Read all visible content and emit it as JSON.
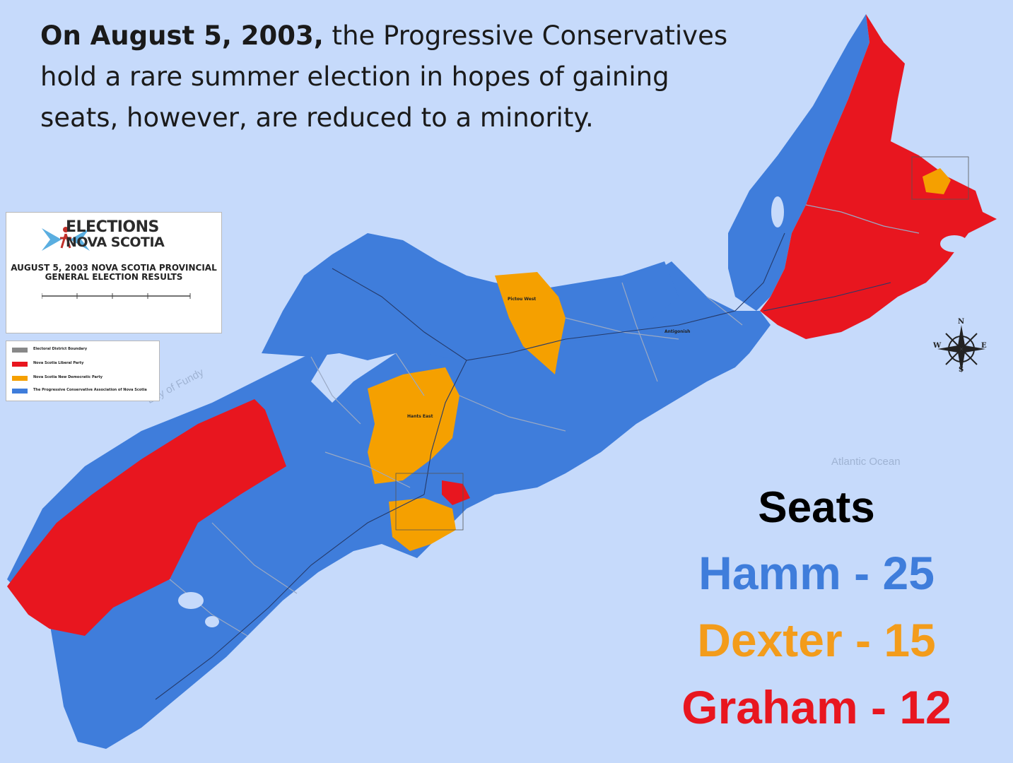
{
  "caption": {
    "bold": "On August 5, 2003,",
    "rest": " the Progressive Conservatives hold a rare summer election in hopes of gaining seats, however, are reduced to a minority."
  },
  "map_legend": {
    "logo_line1": "ELECTIONS",
    "logo_line2": "NOVA SCOTIA",
    "title_line1": "AUGUST 5, 2003 NOVA SCOTIA PROVINCIAL",
    "title_line2": "GENERAL ELECTION RESULTS",
    "key": [
      {
        "label": "Electoral District Boundary",
        "color": "#888888"
      },
      {
        "label": "Nova Scotia Liberal Party",
        "color": "#e8161f"
      },
      {
        "label": "Nova Scotia New Democratic Party",
        "color": "#f5a000"
      },
      {
        "label": "The Progressive Conservative Association of Nova Scotia",
        "color": "#3f7ddb"
      }
    ]
  },
  "water_labels": {
    "bay": "Bay of Fundy",
    "ocean": "Atlantic Ocean"
  },
  "compass": {
    "n": "N",
    "s": "S",
    "e": "E",
    "w": "W"
  },
  "seats": {
    "title": "Seats",
    "rows": [
      {
        "text": "Hamm - 25",
        "color": "#3f7ddb"
      },
      {
        "text": "Dexter - 15",
        "color": "#f39c1b"
      },
      {
        "text": "Graham - 12",
        "color": "#e8161f"
      }
    ]
  },
  "colors": {
    "background": "#c6dafb",
    "pc_blue": "#3f7ddb",
    "ndp_orange": "#f5a000",
    "liberal_red": "#e8161f"
  }
}
